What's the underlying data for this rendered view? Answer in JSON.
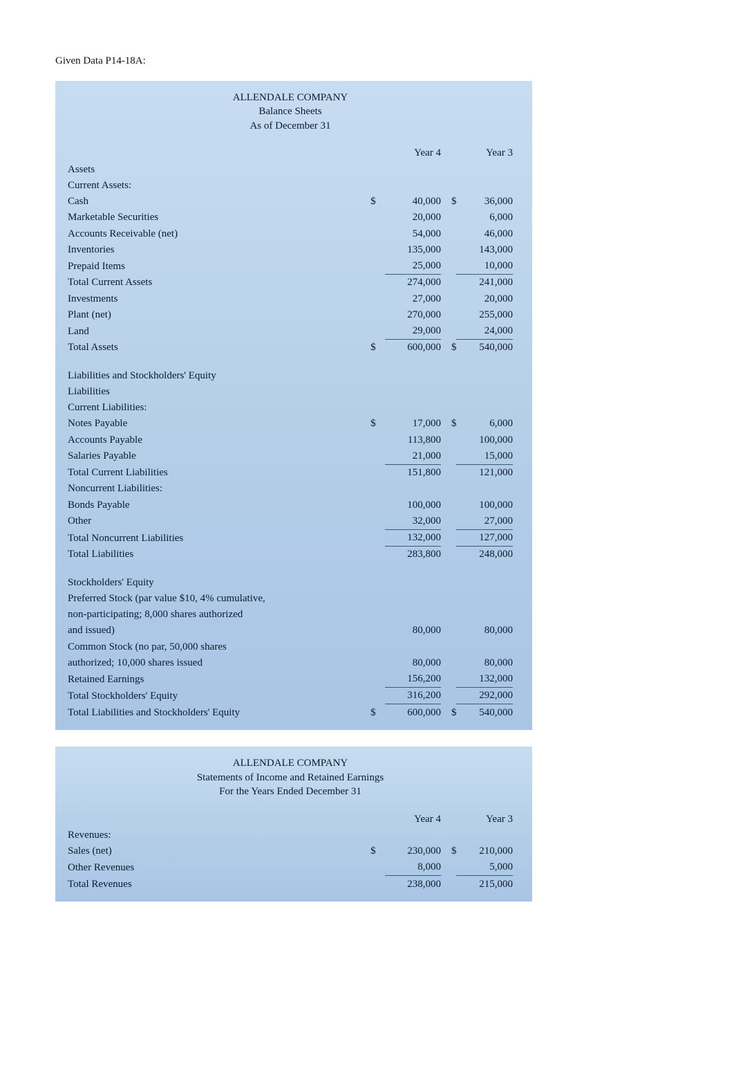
{
  "style": {
    "page_bg": "#ffffff",
    "block_bg_top": "#c7dcf0",
    "block_bg_bottom": "#a9c5e4",
    "text_color": "#0b1a2e",
    "rule_color": "#3a5a7a",
    "font_family": "Georgia, Times New Roman, serif",
    "base_fontsize_pt": 11
  },
  "caption": "Given Data P14-18A:",
  "bs": {
    "title1": "ALLENDALE COMPANY",
    "title2": "Balance Sheets",
    "title3": "As of December 31",
    "colA": "Year 4",
    "colB": "Year 3",
    "assets_hdr": "Assets",
    "ca_hdr": "Current Assets:",
    "rows_ca": [
      {
        "label": "Cash",
        "a": "40,000",
        "b": "36,000",
        "leadA": "$",
        "leadB": "$"
      },
      {
        "label": "Marketable Securities",
        "a": "20,000",
        "b": "6,000"
      },
      {
        "label": "Accounts Receivable (net)",
        "a": "54,000",
        "b": "46,000"
      },
      {
        "label": "Inventories",
        "a": "135,000",
        "b": "143,000"
      },
      {
        "label": "Prepaid Items",
        "a": "25,000",
        "b": "10,000"
      }
    ],
    "tca": {
      "label": "Total Current Assets",
      "a": "274,000",
      "b": "241,000"
    },
    "rows_nca": [
      {
        "label": "Investments",
        "a": "27,000",
        "b": "20,000"
      },
      {
        "label": "Plant (net)",
        "a": "270,000",
        "b": "255,000"
      },
      {
        "label": "Land",
        "a": "29,000",
        "b": "24,000"
      }
    ],
    "ta": {
      "label": "Total Assets",
      "a": "600,000",
      "b": "540,000",
      "leadA": "$",
      "leadB": "$"
    },
    "lse_hdr": "Liabilities and Stockholders' Equity",
    "liab_hdr": "Liabilities",
    "cl_hdr": "Current Liabilities:",
    "rows_cl": [
      {
        "label": "Notes Payable",
        "a": "17,000",
        "b": "6,000",
        "leadA": "$",
        "leadB": "$"
      },
      {
        "label": "Accounts Payable",
        "a": "113,800",
        "b": "100,000"
      },
      {
        "label": "Salaries Payable",
        "a": "21,000",
        "b": "15,000"
      }
    ],
    "tcl": {
      "label": "Total Current Liabilities",
      "a": "151,800",
      "b": "121,000"
    },
    "ncl_hdr": "Noncurrent Liabilities:",
    "rows_ncl": [
      {
        "label": "Bonds Payable",
        "a": "100,000",
        "b": "100,000"
      },
      {
        "label": "Other",
        "a": "32,000",
        "b": "27,000"
      }
    ],
    "tncl": {
      "label": "Total Noncurrent Liabilities",
      "a": "132,000",
      "b": "127,000"
    },
    "tl": {
      "label": "Total Liabilities",
      "a": "283,800",
      "b": "248,000"
    },
    "se_hdr": "Stockholders' Equity",
    "pref1": "Preferred Stock (par value $10, 4% cumulative,",
    "pref2": "non-participating; 8,000 shares authorized",
    "pref3": {
      "label": "and issued)",
      "a": "80,000",
      "b": "80,000"
    },
    "com1": "Common Stock (no par, 50,000 shares",
    "com2": {
      "label": "authorized; 10,000 shares issued",
      "a": "80,000",
      "b": "80,000"
    },
    "re": {
      "label": "Retained Earnings",
      "a": "156,200",
      "b": "132,000"
    },
    "tse": {
      "label": "Total Stockholders' Equity",
      "a": "316,200",
      "b": "292,000"
    },
    "tlse": {
      "label": "Total Liabilities and Stockholders' Equity",
      "a": "600,000",
      "b": "540,000",
      "leadA": "$",
      "leadB": "$"
    }
  },
  "is": {
    "title1": "ALLENDALE COMPANY",
    "title2": "Statements of Income and Retained Earnings",
    "title3": "For the Years Ended December 31",
    "colA": "Year 4",
    "colB": "Year 3",
    "rev_hdr": "Revenues:",
    "rows_rev": [
      {
        "label": "Sales (net)",
        "a": "230,000",
        "b": "210,000",
        "leadA": "$",
        "leadB": "$"
      },
      {
        "label": "Other Revenues",
        "a": "8,000",
        "b": "5,000"
      }
    ],
    "trev": {
      "label": "Total Revenues",
      "a": "238,000",
      "b": "215,000"
    }
  }
}
